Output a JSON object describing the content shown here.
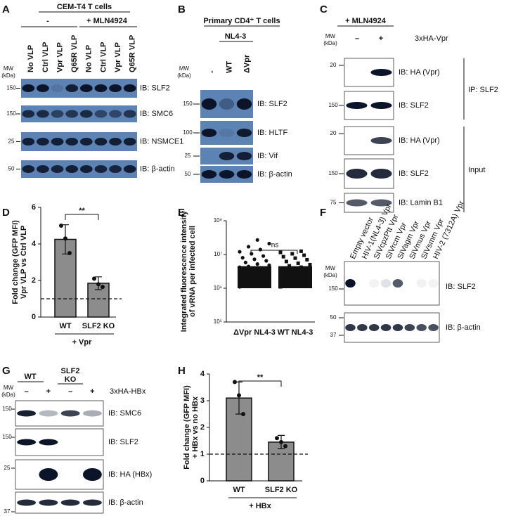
{
  "panels": {
    "A": {
      "label": "A",
      "title": "CEM-T4  T cells",
      "groups": [
        "-",
        "+ MLN4924"
      ],
      "lanes": [
        "No VLP",
        "Ctrl VLP",
        "Vpr VLP",
        "Q65R VLP",
        "No VLP",
        "Ctrl VLP",
        "Vpr VLP",
        "Q65R VLP"
      ],
      "mw_header": [
        "MW",
        "(kDa)"
      ],
      "blots": [
        {
          "mw": "150",
          "label": "IB: SLF2"
        },
        {
          "mw": "150",
          "label": "IB: SMC6"
        },
        {
          "mw": "25",
          "label": "IB: NSMCE1"
        },
        {
          "mw": "50",
          "label": "IB: β-actin"
        }
      ]
    },
    "B": {
      "label": "B",
      "title": "Primary CD4⁺ T cells",
      "group": "NL4-3",
      "lanes": [
        "-",
        "WT",
        "ΔVpr"
      ],
      "mw_header": [
        "MW",
        "(kDa)"
      ],
      "blots": [
        {
          "mw": "150",
          "label": "IB: SLF2"
        },
        {
          "mw": "100",
          "label": "IB: HLTF"
        },
        {
          "mw": "25",
          "label": "IB: Vif"
        },
        {
          "mw": "50",
          "label": "IB: β-actin"
        }
      ]
    },
    "C": {
      "label": "C",
      "title": "+ MLN4924",
      "mw_header": [
        "MW",
        "(kDa)"
      ],
      "lanes": [
        "–",
        "+"
      ],
      "treatment": "3xHA-Vpr",
      "blots": [
        {
          "mw": "20",
          "label": "IB: HA (Vpr)"
        },
        {
          "mw": "150",
          "label": "IB: SLF2"
        },
        {
          "mw": "20",
          "label": "IB: HA (Vpr)"
        },
        {
          "mw": "150",
          "label": "IB: SLF2"
        },
        {
          "mw": "75",
          "label": "IB: Lamin B1"
        }
      ],
      "brackets": [
        "IP: SLF2",
        "Input"
      ]
    },
    "D": {
      "label": "D",
      "type": "bar",
      "ylabel": [
        "Fold change (GFP MFI)",
        "Vpr VLP vs Ctrl VLP"
      ],
      "categories": [
        "WT",
        "SLF2 KO"
      ],
      "values": [
        4.25,
        1.85
      ],
      "errors": [
        0.8,
        0.35
      ],
      "points": [
        [
          5.0,
          4.3,
          3.5
        ],
        [
          2.1,
          1.8,
          1.65
        ]
      ],
      "ylim": [
        0,
        6
      ],
      "yticks": [
        0,
        2,
        4,
        6
      ],
      "reference_line": 1,
      "significance": "**",
      "group_label": "+ Vpr",
      "color": "#8c8c8c"
    },
    "E": {
      "label": "E",
      "type": "scatter",
      "log_scale": true,
      "ylabel": [
        "Integrated fluorescence intensity",
        "of vRNA per infected cell"
      ],
      "ylim": [
        100000,
        100000000
      ],
      "yticks": [
        {
          "value": 100000,
          "label": "10⁵"
        },
        {
          "value": 1000000,
          "label": "10⁶"
        },
        {
          "value": 10000000,
          "label": "10⁷"
        },
        {
          "value": 100000000,
          "label": "10⁸"
        }
      ],
      "categories": [
        "ΔVpr NL4-3",
        "WT NL4-3"
      ],
      "significance": "ns",
      "series": [
        {
          "name": "ΔVpr NL4-3",
          "values": [
            1100000,
            1300000,
            1500000,
            1700000,
            1900000,
            2100000,
            2300000,
            2500000,
            2700000,
            3000000,
            3300000,
            3600000,
            4000000,
            4400000,
            4800000,
            5200000,
            5800000,
            6500000,
            7200000,
            8000000,
            9000000,
            10500000,
            12000000,
            14000000,
            17000000,
            21000000,
            27000000,
            1200000,
            1600000,
            2000000,
            2400000,
            2900000,
            3500000,
            4200000
          ]
        },
        {
          "name": "WT NL4-3",
          "values": [
            1100000,
            1300000,
            1500000,
            1700000,
            1900000,
            2100000,
            2300000,
            2500000,
            2800000,
            3100000,
            3400000,
            3800000,
            4200000,
            4600000,
            5000000,
            5500000,
            6200000,
            7000000,
            7800000,
            8600000,
            9500000,
            10500000,
            11500000,
            12500000,
            1200000,
            1600000,
            2000000,
            2400000,
            3000000,
            3600000
          ]
        }
      ]
    },
    "F": {
      "label": "F",
      "lanes": [
        "Empty vector",
        "HIV-1(NL4-3) Vpr",
        "SIVcpzPtt Vpr",
        "SIVrcm Vpr",
        "SIVagm Vpr",
        "SIVmus Vpr",
        "SIVsmm Vpr",
        "HIV-2 (7312A) Vpr"
      ],
      "mw_header": [
        "MW",
        "(kDa)"
      ],
      "blots": [
        {
          "mw": [
            "150"
          ],
          "label": "IB: SLF2"
        },
        {
          "mw": [
            "50",
            "37"
          ],
          "label": "IB: β-actin"
        }
      ]
    },
    "G": {
      "label": "G",
      "groups": [
        [
          "WT"
        ],
        [
          "SLF2",
          "KO"
        ]
      ],
      "mw_header": [
        "MW",
        "(kDa)"
      ],
      "lanes": [
        "–",
        "+",
        "–",
        "+"
      ],
      "treatment": "3xHA-HBx",
      "blots": [
        {
          "mw": "150",
          "label": "IB: SMC6"
        },
        {
          "mw": "150",
          "label": "IB: SLF2"
        },
        {
          "mw": "25",
          "label": "IB: HA (HBx)"
        },
        {
          "mw": "37",
          "label": "IB: β-actin"
        }
      ]
    },
    "H": {
      "label": "H",
      "type": "bar",
      "ylabel": [
        "Fold change  (GFP MFI)",
        "+ HBx vs no HBx"
      ],
      "categories": [
        "WT",
        "SLF2 KO"
      ],
      "values": [
        3.1,
        1.45
      ],
      "errors": [
        0.6,
        0.25
      ],
      "points": [
        [
          3.7,
          3.2,
          2.5
        ],
        [
          1.6,
          1.45,
          1.3
        ]
      ],
      "ylim": [
        0,
        4
      ],
      "yticks": [
        0,
        1,
        2,
        3,
        4
      ],
      "reference_line": 1,
      "significance": "**",
      "group_label": "+ HBx",
      "color": "#8c8c8c"
    }
  }
}
